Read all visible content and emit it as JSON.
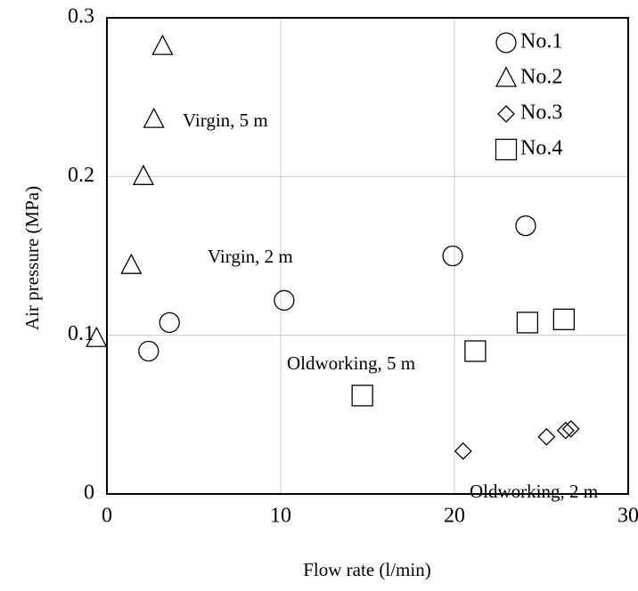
{
  "chart_data": {
    "type": "scatter",
    "x_label": "Flow rate (l/min)",
    "y_label": "Air pressure (MPa)",
    "xlim": [
      0,
      30
    ],
    "ylim": [
      0,
      0.3
    ],
    "xticks": [
      0,
      10,
      20,
      30
    ],
    "yticks": [
      0,
      0.1,
      0.2,
      0.3
    ],
    "grid": true,
    "legend": "upper right",
    "series": [
      {
        "name": "No.1",
        "marker": "circle",
        "color": "#000000",
        "x": [
          2.4,
          3.6,
          10.2,
          19.9,
          24.1
        ],
        "values": [
          0.09,
          0.108,
          0.122,
          0.15,
          0.169
        ]
      },
      {
        "name": "No.2",
        "marker": "triangle",
        "color": "#000000",
        "x": [
          -0.6,
          1.4,
          2.1,
          2.7,
          3.2
        ],
        "values": [
          0.098,
          0.144,
          0.2,
          0.236,
          0.282
        ]
      },
      {
        "name": "No.3",
        "marker": "diamond",
        "color": "#000000",
        "x": [
          20.5,
          25.3,
          26.4,
          26.7
        ],
        "values": [
          0.027,
          0.036,
          0.04,
          0.041
        ]
      },
      {
        "name": "No.4",
        "marker": "square",
        "color": "#000000",
        "x": [
          14.7,
          21.2,
          24.2,
          26.3
        ],
        "values": [
          0.062,
          0.09,
          0.108,
          0.11
        ]
      }
    ],
    "annotations": [
      "Virgin, 5 m",
      "Virgin, 2 m",
      "Oldworking, 5 m",
      "Oldworking, 2 m"
    ]
  }
}
